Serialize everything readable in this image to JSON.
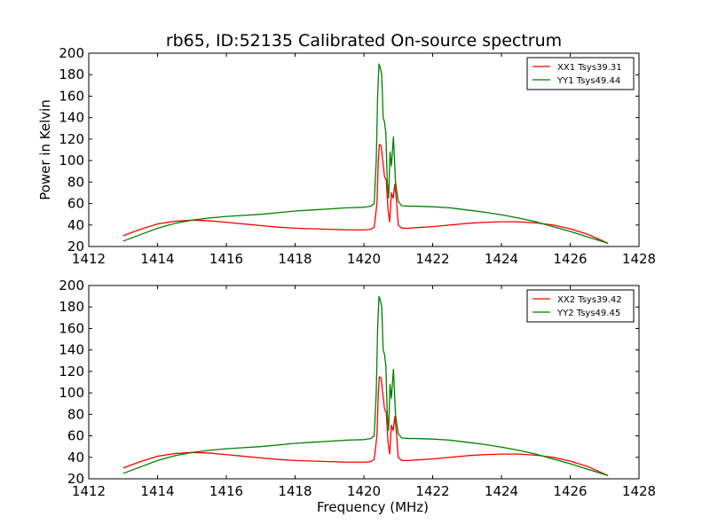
{
  "figure_title": "rb65, ID:52135 Calibrated On-source spectrum",
  "xlabel": "Frequency (MHz)",
  "ylabel": "Power in Kelvin",
  "colors": {
    "XX": "#ff0000",
    "YY": "#008000"
  },
  "chart_data": [
    {
      "type": "line",
      "title": "rb65, ID:52135 Calibrated On-source spectrum",
      "xlabel": "",
      "ylabel": "Power in Kelvin",
      "xlim": [
        1412,
        1428
      ],
      "ylim": [
        20,
        200
      ],
      "xticks": [
        1412,
        1414,
        1416,
        1418,
        1420,
        1422,
        1424,
        1426,
        1428
      ],
      "yticks": [
        20,
        40,
        60,
        80,
        100,
        120,
        140,
        160,
        180,
        200
      ],
      "grid": false,
      "legend": "top-right",
      "series": [
        {
          "name": "XX1 Tsys39.31",
          "color": "#ff0000",
          "points": [
            [
              1413.0,
              30
            ],
            [
              1413.5,
              36
            ],
            [
              1414.0,
              41
            ],
            [
              1414.5,
              43.5
            ],
            [
              1415.0,
              44.5
            ],
            [
              1415.5,
              44
            ],
            [
              1416.0,
              42.5
            ],
            [
              1416.5,
              41
            ],
            [
              1417.0,
              39.5
            ],
            [
              1417.5,
              38
            ],
            [
              1418.0,
              37
            ],
            [
              1418.5,
              36.5
            ],
            [
              1419.0,
              36
            ],
            [
              1419.5,
              35.5
            ],
            [
              1420.0,
              35.5
            ],
            [
              1420.2,
              36
            ],
            [
              1420.3,
              38
            ],
            [
              1420.38,
              60
            ],
            [
              1420.42,
              100
            ],
            [
              1420.45,
              115
            ],
            [
              1420.5,
              114
            ],
            [
              1420.55,
              100
            ],
            [
              1420.6,
              85
            ],
            [
              1420.65,
              82
            ],
            [
              1420.7,
              55
            ],
            [
              1420.75,
              43
            ],
            [
              1420.8,
              70
            ],
            [
              1420.85,
              65
            ],
            [
              1420.9,
              78
            ],
            [
              1420.95,
              62
            ],
            [
              1421.0,
              40
            ],
            [
              1421.1,
              37
            ],
            [
              1421.3,
              37
            ],
            [
              1421.5,
              37.5
            ],
            [
              1422.0,
              38.5
            ],
            [
              1422.5,
              40
            ],
            [
              1423.0,
              41.5
            ],
            [
              1423.5,
              42.5
            ],
            [
              1424.0,
              43
            ],
            [
              1424.5,
              43
            ],
            [
              1425.0,
              42
            ],
            [
              1425.5,
              40
            ],
            [
              1426.0,
              36.5
            ],
            [
              1426.5,
              31.5
            ],
            [
              1427.1,
              23
            ]
          ]
        },
        {
          "name": "YY1 Tsys49.44",
          "color": "#008000",
          "points": [
            [
              1413.0,
              25
            ],
            [
              1413.5,
              31
            ],
            [
              1414.0,
              37
            ],
            [
              1414.5,
              41.5
            ],
            [
              1415.0,
              44.5
            ],
            [
              1415.5,
              46.5
            ],
            [
              1416.0,
              48
            ],
            [
              1416.5,
              49
            ],
            [
              1417.0,
              50
            ],
            [
              1417.5,
              51.5
            ],
            [
              1418.0,
              53
            ],
            [
              1418.5,
              54
            ],
            [
              1419.0,
              55
            ],
            [
              1419.5,
              56
            ],
            [
              1420.0,
              56.5
            ],
            [
              1420.2,
              57.5
            ],
            [
              1420.3,
              60
            ],
            [
              1420.36,
              100
            ],
            [
              1420.4,
              160
            ],
            [
              1420.44,
              190
            ],
            [
              1420.48,
              186
            ],
            [
              1420.52,
              180
            ],
            [
              1420.56,
              140
            ],
            [
              1420.6,
              136
            ],
            [
              1420.64,
              125
            ],
            [
              1420.68,
              80
            ],
            [
              1420.72,
              65
            ],
            [
              1420.76,
              108
            ],
            [
              1420.8,
              95
            ],
            [
              1420.86,
              122
            ],
            [
              1420.92,
              80
            ],
            [
              1421.0,
              62
            ],
            [
              1421.1,
              58
            ],
            [
              1421.3,
              57.5
            ],
            [
              1421.5,
              57.5
            ],
            [
              1422.0,
              57
            ],
            [
              1422.5,
              56
            ],
            [
              1423.0,
              54
            ],
            [
              1423.5,
              52
            ],
            [
              1424.0,
              49.5
            ],
            [
              1424.5,
              46.5
            ],
            [
              1425.0,
              43
            ],
            [
              1425.5,
              38.5
            ],
            [
              1426.0,
              34
            ],
            [
              1426.5,
              29
            ],
            [
              1427.1,
              23
            ]
          ]
        }
      ]
    },
    {
      "type": "line",
      "title": "",
      "xlabel": "Frequency (MHz)",
      "ylabel": "",
      "xlim": [
        1412,
        1428
      ],
      "ylim": [
        20,
        200
      ],
      "xticks": [
        1412,
        1414,
        1416,
        1418,
        1420,
        1422,
        1424,
        1426,
        1428
      ],
      "yticks": [
        20,
        40,
        60,
        80,
        100,
        120,
        140,
        160,
        180,
        200
      ],
      "grid": false,
      "legend": "top-right",
      "series": [
        {
          "name": "XX2 Tsys39.42",
          "color": "#ff0000",
          "points": [
            [
              1413.0,
              30
            ],
            [
              1413.5,
              36
            ],
            [
              1414.0,
              41
            ],
            [
              1414.5,
              43.5
            ],
            [
              1415.0,
              44.5
            ],
            [
              1415.5,
              44
            ],
            [
              1416.0,
              42.5
            ],
            [
              1416.5,
              41
            ],
            [
              1417.0,
              39.5
            ],
            [
              1417.5,
              38
            ],
            [
              1418.0,
              37
            ],
            [
              1418.5,
              36.5
            ],
            [
              1419.0,
              36
            ],
            [
              1419.5,
              35.5
            ],
            [
              1420.0,
              35.5
            ],
            [
              1420.2,
              36
            ],
            [
              1420.3,
              38
            ],
            [
              1420.38,
              60
            ],
            [
              1420.42,
              100
            ],
            [
              1420.45,
              115
            ],
            [
              1420.5,
              114
            ],
            [
              1420.55,
              100
            ],
            [
              1420.6,
              85
            ],
            [
              1420.65,
              82
            ],
            [
              1420.7,
              55
            ],
            [
              1420.75,
              43
            ],
            [
              1420.8,
              70
            ],
            [
              1420.85,
              65
            ],
            [
              1420.9,
              78
            ],
            [
              1420.95,
              62
            ],
            [
              1421.0,
              40
            ],
            [
              1421.1,
              37
            ],
            [
              1421.3,
              37
            ],
            [
              1421.5,
              37.5
            ],
            [
              1422.0,
              38.5
            ],
            [
              1422.5,
              40
            ],
            [
              1423.0,
              41.5
            ],
            [
              1423.5,
              42.5
            ],
            [
              1424.0,
              43
            ],
            [
              1424.5,
              43
            ],
            [
              1425.0,
              42
            ],
            [
              1425.5,
              40
            ],
            [
              1426.0,
              36.5
            ],
            [
              1426.5,
              31.5
            ],
            [
              1427.1,
              23
            ]
          ]
        },
        {
          "name": "YY2 Tsys49.45",
          "color": "#008000",
          "points": [
            [
              1413.0,
              25
            ],
            [
              1413.5,
              31
            ],
            [
              1414.0,
              37
            ],
            [
              1414.5,
              41.5
            ],
            [
              1415.0,
              44.5
            ],
            [
              1415.5,
              46.5
            ],
            [
              1416.0,
              48
            ],
            [
              1416.5,
              49
            ],
            [
              1417.0,
              50
            ],
            [
              1417.5,
              51.5
            ],
            [
              1418.0,
              53
            ],
            [
              1418.5,
              54
            ],
            [
              1419.0,
              55
            ],
            [
              1419.5,
              56
            ],
            [
              1420.0,
              56.5
            ],
            [
              1420.2,
              57.5
            ],
            [
              1420.3,
              60
            ],
            [
              1420.36,
              100
            ],
            [
              1420.4,
              160
            ],
            [
              1420.44,
              190
            ],
            [
              1420.48,
              186
            ],
            [
              1420.52,
              180
            ],
            [
              1420.56,
              140
            ],
            [
              1420.6,
              136
            ],
            [
              1420.64,
              125
            ],
            [
              1420.68,
              80
            ],
            [
              1420.72,
              65
            ],
            [
              1420.76,
              108
            ],
            [
              1420.8,
              95
            ],
            [
              1420.86,
              122
            ],
            [
              1420.92,
              80
            ],
            [
              1421.0,
              62
            ],
            [
              1421.1,
              58
            ],
            [
              1421.3,
              57.5
            ],
            [
              1421.5,
              57.5
            ],
            [
              1422.0,
              57
            ],
            [
              1422.5,
              56
            ],
            [
              1423.0,
              54
            ],
            [
              1423.5,
              52
            ],
            [
              1424.0,
              49.5
            ],
            [
              1424.5,
              46.5
            ],
            [
              1425.0,
              43
            ],
            [
              1425.5,
              38.5
            ],
            [
              1426.0,
              34
            ],
            [
              1426.5,
              29
            ],
            [
              1427.1,
              23
            ]
          ]
        }
      ]
    }
  ]
}
